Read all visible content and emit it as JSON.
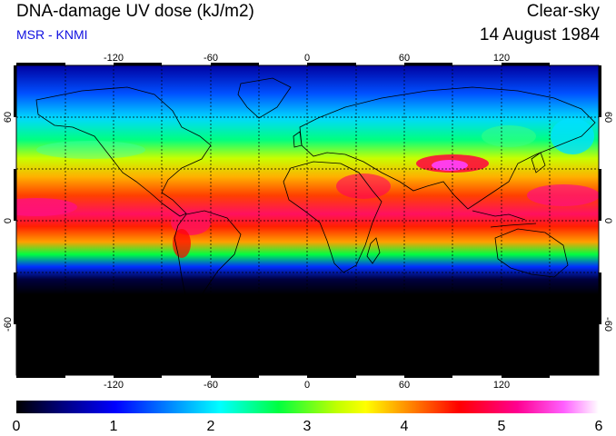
{
  "header": {
    "title": "DNA-damage UV dose (kJ/m2)",
    "subtitle": "MSR - KNMI",
    "sky_condition": "Clear-sky",
    "date": "14 August 1984"
  },
  "map": {
    "projection": "equirectangular",
    "longitude_ticks": [
      -120,
      -60,
      0,
      60,
      120
    ],
    "latitude_ticks": [
      60,
      0,
      -60
    ],
    "lon_range": [
      -180,
      180
    ],
    "lat_range": [
      -90,
      90
    ],
    "grid": "dashed every 30 degrees",
    "coastlines": true
  },
  "colorbar": {
    "ticks": [
      "0",
      "1",
      "2",
      "3",
      "4",
      "5",
      "6"
    ],
    "min": 0,
    "max": 6,
    "colors": [
      "#000000",
      "#0000c8",
      "#0080ff",
      "#00ffff",
      "#00ff00",
      "#ffff00",
      "#ff8000",
      "#ff0000",
      "#ff0080",
      "#ff40ff",
      "#ffffff"
    ]
  }
}
